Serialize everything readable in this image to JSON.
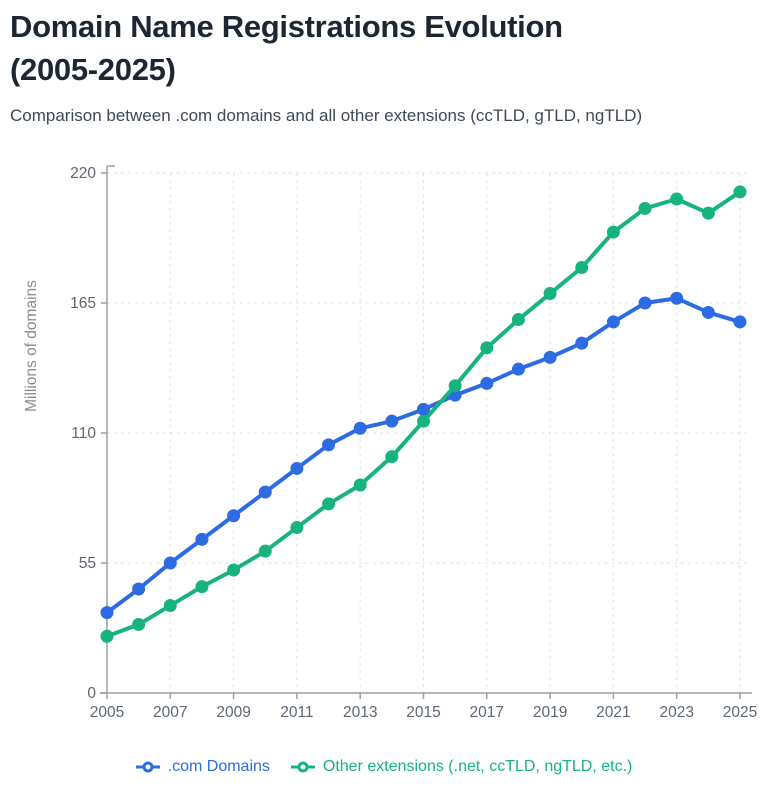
{
  "header": {
    "title_line1": "Domain Name Registrations Evolution",
    "title_line2": "(2005-2025)",
    "subtitle": "Comparison between .com domains and all other extensions (ccTLD, gTLD, ngTLD)"
  },
  "chart_data": {
    "type": "line",
    "x": [
      2005,
      2006,
      2007,
      2008,
      2009,
      2010,
      2011,
      2012,
      2013,
      2014,
      2015,
      2016,
      2017,
      2018,
      2019,
      2020,
      2021,
      2022,
      2023,
      2024,
      2025
    ],
    "series": [
      {
        "name": ".com Domains",
        "color": "#2c6be2",
        "values": [
          34,
          44,
          55,
          65,
          75,
          85,
          95,
          105,
          112,
          115,
          120,
          126,
          131,
          137,
          142,
          148,
          157,
          165,
          167,
          161,
          157
        ]
      },
      {
        "name": "Other extensions (.net, ccTLD, ngTLD, etc.)",
        "color": "#16b47c",
        "values": [
          24,
          29,
          37,
          45,
          52,
          60,
          70,
          80,
          88,
          100,
          115,
          130,
          146,
          158,
          169,
          180,
          195,
          205,
          209,
          203,
          212
        ]
      }
    ],
    "ylabel": "Millions of domains",
    "xlabel": "",
    "ylim": [
      0,
      220
    ],
    "yticks": [
      0,
      55,
      110,
      165,
      220
    ],
    "xticks": [
      2005,
      2007,
      2009,
      2011,
      2013,
      2015,
      2017,
      2019,
      2021,
      2023,
      2025
    ],
    "grid": "dashed",
    "legend_position": "bottom",
    "grid_color": "#e1e3e6",
    "axis_color": "#9aa0a8",
    "tick_label_color": "#5f6772",
    "axis_title_color": "#858c96"
  }
}
